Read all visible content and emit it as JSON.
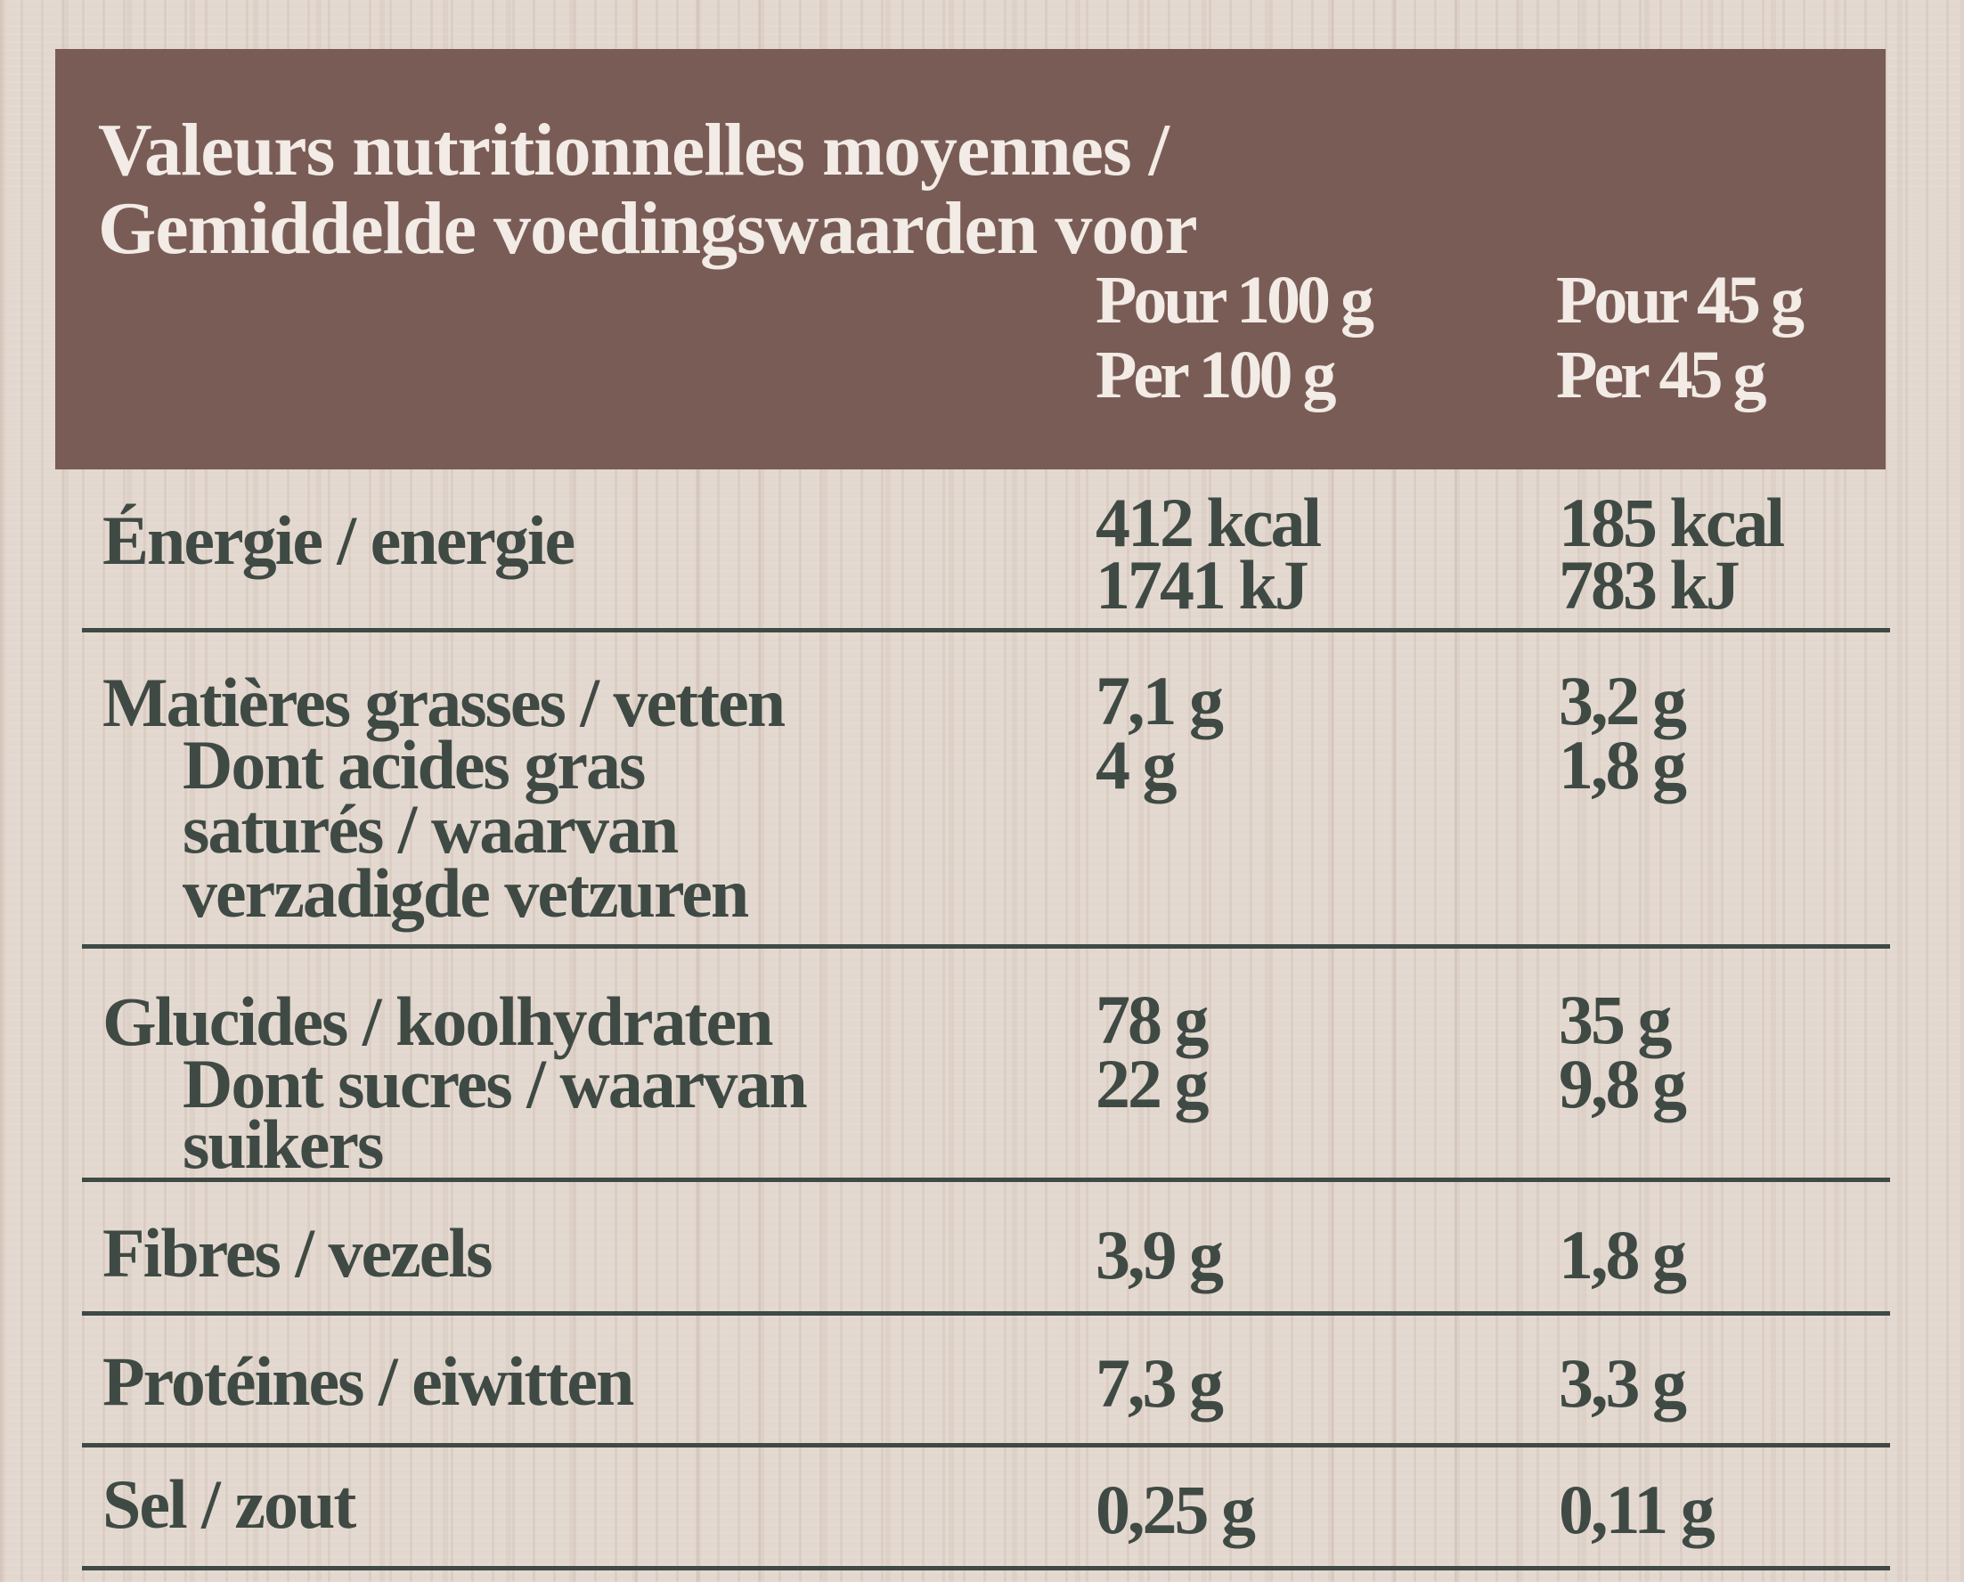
{
  "header": {
    "title_line1": "Valeurs nutritionnelles moyennes /",
    "title_line2": "Gemiddelde voedingswaarden voor",
    "col1_line1": "Pour 100 g",
    "col1_line2": "Per 100 g",
    "col2_line1": "Pour 45 g",
    "col2_line2": "Per 45 g"
  },
  "rows": {
    "energy": {
      "label": "Énergie / energie",
      "per100": [
        "412 kcal",
        "1741 kJ"
      ],
      "per45": [
        "185 kcal",
        "783 kJ"
      ]
    },
    "fat": {
      "label": "Matières grasses / vetten",
      "per100": "7,1 g",
      "per45": "3,2 g",
      "sub_label": [
        "Dont acides gras",
        "saturés / waarvan",
        "verzadigde vetzuren"
      ],
      "sub_per100": "4 g",
      "sub_per45": "1,8 g"
    },
    "carbs": {
      "label": "Glucides / koolhydraten",
      "per100": "78 g",
      "per45": "35 g",
      "sub_label": [
        "Dont sucres / waarvan",
        "suikers"
      ],
      "sub_per100": "22 g",
      "sub_per45": "9,8 g"
    },
    "fibre": {
      "label": "Fibres / vezels",
      "per100": "3,9 g",
      "per45": "1,8 g"
    },
    "protein": {
      "label": "Protéines / eiwitten",
      "per100": "7,3 g",
      "per45": "3,3 g"
    },
    "salt": {
      "label": "Sel / zout",
      "per100": "0,25 g",
      "per45": "0,11 g"
    }
  },
  "colors": {
    "header_bg": "#7a5c56",
    "header_text": "#f2ebe6",
    "body_text": "#3f4a44",
    "background": "#e3d8cf"
  }
}
